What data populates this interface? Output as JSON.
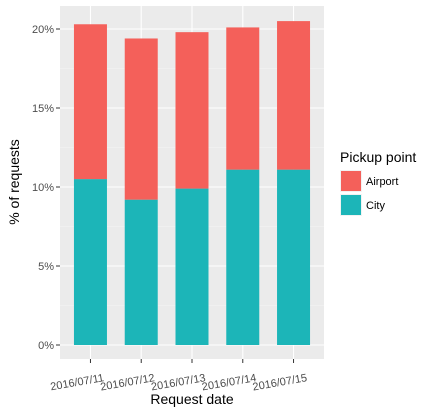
{
  "chart_data": {
    "type": "bar",
    "stacked": true,
    "categories": [
      "2016/07/11",
      "2016/07/12",
      "2016/07/13",
      "2016/07/14",
      "2016/07/15"
    ],
    "series": [
      {
        "name": "City",
        "color": "#1CB5B8",
        "values": [
          10.5,
          9.2,
          9.9,
          11.1,
          11.1
        ]
      },
      {
        "name": "Airport",
        "color": "#F4605A",
        "values": [
          9.8,
          10.2,
          9.9,
          9.0,
          9.4
        ]
      }
    ],
    "xlabel": "Request date",
    "ylabel": "% of requests",
    "ylim": [
      0,
      21.5
    ],
    "yticks": [
      0,
      5,
      10,
      15,
      20
    ],
    "ytick_labels": [
      "0%",
      "5%",
      "10%",
      "15%",
      "20%"
    ],
    "legend": {
      "title": "Pickup point",
      "position": "right",
      "items": [
        "Airport",
        "City"
      ]
    },
    "grid": true,
    "panel_background": "#EBEBEB"
  }
}
